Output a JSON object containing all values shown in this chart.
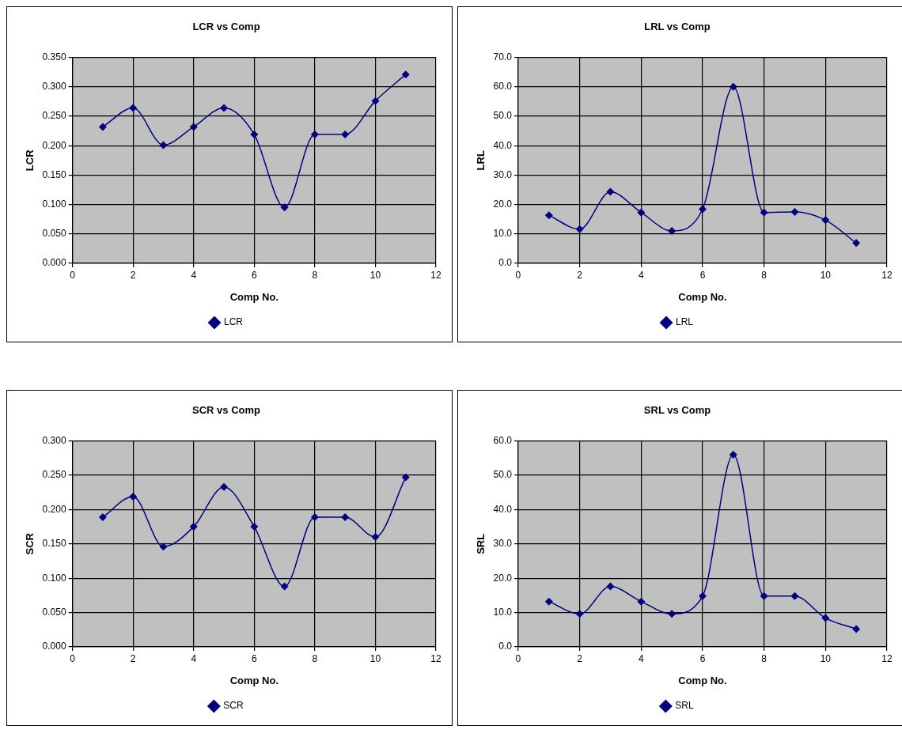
{
  "chart_data": [
    {
      "type": "line",
      "title": "LCR vs Comp",
      "xlabel": "Comp No.",
      "ylabel": "LCR",
      "x": [
        1,
        2,
        3,
        4,
        5,
        6,
        7,
        8,
        9,
        10,
        11
      ],
      "series": [
        {
          "name": "LCR",
          "color": "#000080",
          "values": [
            0.232,
            0.264,
            0.201,
            0.232,
            0.264,
            0.219,
            0.095,
            0.219,
            0.219,
            0.276,
            0.321
          ]
        }
      ],
      "xlim": [
        0,
        12
      ],
      "xticks": [
        0,
        2,
        4,
        6,
        8,
        10,
        12
      ],
      "ylim": [
        0,
        0.35
      ],
      "yticks": [
        {
          "value": 0,
          "label": "0.000"
        },
        {
          "value": 0.05,
          "label": "0.050"
        },
        {
          "value": 0.1,
          "label": "0.100"
        },
        {
          "value": 0.15,
          "label": "0.150"
        },
        {
          "value": 0.2,
          "label": "0.200"
        },
        {
          "value": 0.25,
          "label": "0.250"
        },
        {
          "value": 0.3,
          "label": "0.300"
        },
        {
          "value": 0.35,
          "label": "0.350"
        }
      ],
      "grid": true,
      "legend": "bottom",
      "marker": "diamond"
    },
    {
      "type": "line",
      "title": "LRL vs Comp",
      "xlabel": "Comp No.",
      "ylabel": "LRL",
      "x": [
        1,
        2,
        3,
        4,
        5,
        6,
        7,
        8,
        9,
        10,
        11
      ],
      "series": [
        {
          "name": "LRL",
          "color": "#000080",
          "values": [
            16.3,
            11.6,
            24.3,
            17.3,
            11.0,
            18.4,
            60.0,
            17.3,
            17.5,
            14.7,
            6.9
          ]
        }
      ],
      "xlim": [
        0,
        12
      ],
      "xticks": [
        0,
        2,
        4,
        6,
        8,
        10,
        12
      ],
      "ylim": [
        0,
        70
      ],
      "yticks": [
        {
          "value": 0,
          "label": "0.0"
        },
        {
          "value": 10,
          "label": "10.0"
        },
        {
          "value": 20,
          "label": "20.0"
        },
        {
          "value": 30,
          "label": "30.0"
        },
        {
          "value": 40,
          "label": "40.0"
        },
        {
          "value": 50,
          "label": "50.0"
        },
        {
          "value": 60,
          "label": "60.0"
        },
        {
          "value": 70,
          "label": "70.0"
        }
      ],
      "grid": true,
      "legend": "bottom",
      "marker": "diamond"
    },
    {
      "type": "line",
      "title": "SCR vs Comp",
      "xlabel": "Comp No.",
      "ylabel": "SCR",
      "x": [
        1,
        2,
        3,
        4,
        5,
        6,
        7,
        8,
        9,
        10,
        11
      ],
      "series": [
        {
          "name": "SCR",
          "color": "#000080",
          "values": [
            0.189,
            0.219,
            0.146,
            0.175,
            0.233,
            0.175,
            0.088,
            0.189,
            0.189,
            0.16,
            0.247
          ]
        }
      ],
      "xlim": [
        0,
        12
      ],
      "xticks": [
        0,
        2,
        4,
        6,
        8,
        10,
        12
      ],
      "ylim": [
        0,
        0.3
      ],
      "yticks": [
        {
          "value": 0,
          "label": "0.000"
        },
        {
          "value": 0.05,
          "label": "0.050"
        },
        {
          "value": 0.1,
          "label": "0.100"
        },
        {
          "value": 0.15,
          "label": "0.150"
        },
        {
          "value": 0.2,
          "label": "0.200"
        },
        {
          "value": 0.25,
          "label": "0.250"
        },
        {
          "value": 0.3,
          "label": "0.300"
        }
      ],
      "grid": true,
      "legend": "bottom",
      "marker": "diamond"
    },
    {
      "type": "line",
      "title": "SRL vs Comp",
      "xlabel": "Comp No.",
      "ylabel": "SRL",
      "x": [
        1,
        2,
        3,
        4,
        5,
        6,
        7,
        8,
        9,
        10,
        11
      ],
      "series": [
        {
          "name": "SRL",
          "color": "#000080",
          "values": [
            13.2,
            9.6,
            17.6,
            13.2,
            9.6,
            14.8,
            56.0,
            14.8,
            14.8,
            8.4,
            5.2
          ]
        }
      ],
      "xlim": [
        0,
        12
      ],
      "xticks": [
        0,
        2,
        4,
        6,
        8,
        10,
        12
      ],
      "ylim": [
        0,
        60
      ],
      "yticks": [
        {
          "value": 0,
          "label": "0.0"
        },
        {
          "value": 10,
          "label": "10.0"
        },
        {
          "value": 20,
          "label": "20.0"
        },
        {
          "value": 30,
          "label": "30.0"
        },
        {
          "value": 40,
          "label": "40.0"
        },
        {
          "value": 50,
          "label": "50.0"
        },
        {
          "value": 60,
          "label": "60.0"
        }
      ],
      "grid": true,
      "legend": "bottom",
      "marker": "diamond"
    }
  ]
}
